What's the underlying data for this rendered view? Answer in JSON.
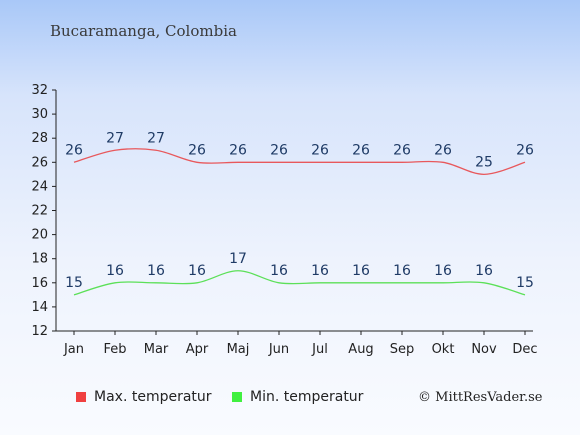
{
  "page": {
    "title": "Bucaramanga, Colombia",
    "copyright": "© MittResVader.se"
  },
  "colors": {
    "max_line": "#e8585c",
    "min_line": "#5ce058",
    "max_swatch": "#f04040",
    "min_swatch": "#40f040",
    "axis": "#222222",
    "label": "#1f3b66"
  },
  "chart_data": {
    "type": "line",
    "title": "Bucaramanga, Colombia",
    "categories": [
      "Jan",
      "Feb",
      "Mar",
      "Apr",
      "Maj",
      "Jun",
      "Jul",
      "Aug",
      "Sep",
      "Okt",
      "Nov",
      "Dec"
    ],
    "series": [
      {
        "name": "Max. temperatur",
        "values": [
          26,
          27,
          27,
          26,
          26,
          26,
          26,
          26,
          26,
          26,
          25,
          26
        ]
      },
      {
        "name": "Min. temperatur",
        "values": [
          15,
          16,
          16,
          16,
          17,
          16,
          16,
          16,
          16,
          16,
          16,
          15
        ]
      }
    ],
    "yticks": [
      12,
      14,
      16,
      18,
      20,
      22,
      24,
      26,
      28,
      30,
      32
    ],
    "ylim": [
      12,
      32
    ],
    "xlabel": "",
    "ylabel": "",
    "grid": false,
    "legend_position": "bottom"
  }
}
